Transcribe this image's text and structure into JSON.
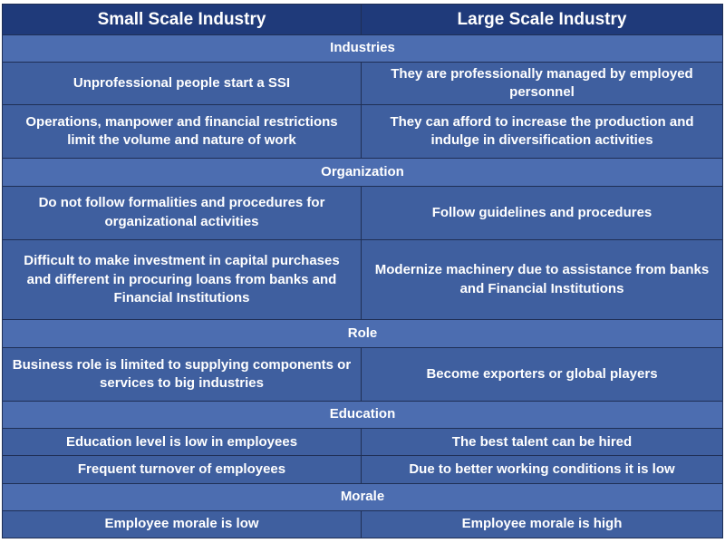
{
  "header": {
    "left": "Small Scale Industry",
    "right": "Large Scale Industry"
  },
  "sections": [
    {
      "title": "Industries",
      "rows": [
        {
          "left": "Unprofessional people start a SSI",
          "right": "They are professionally managed by employed personnel"
        },
        {
          "left": "Operations, manpower and financial restrictions limit the volume and nature of work",
          "right": "They can afford to increase the production and indulge in diversification activities"
        }
      ]
    },
    {
      "title": "Organization",
      "rows": [
        {
          "left": "Do not follow formalities and procedures for organizational activities",
          "right": "Follow guidelines and procedures"
        },
        {
          "left": "Difficult to make investment in capital purchases and different in procuring loans from banks and Financial Institutions",
          "right": "Modernize machinery due to assistance from banks and Financial Institutions"
        }
      ]
    },
    {
      "title": "Role",
      "rows": [
        {
          "left": "Business role is limited to supplying components or services to big industries",
          "right": "Become exporters or global players"
        }
      ]
    },
    {
      "title": "Education",
      "rows": [
        {
          "left": "Education level is low in employees",
          "right": "The best talent can be hired"
        },
        {
          "left": "Frequent turnover of employees",
          "right": "Due to better working conditions it is low"
        }
      ]
    },
    {
      "title": "Morale",
      "rows": [
        {
          "left": "Employee morale is low",
          "right": "Employee morale is high"
        }
      ]
    }
  ]
}
